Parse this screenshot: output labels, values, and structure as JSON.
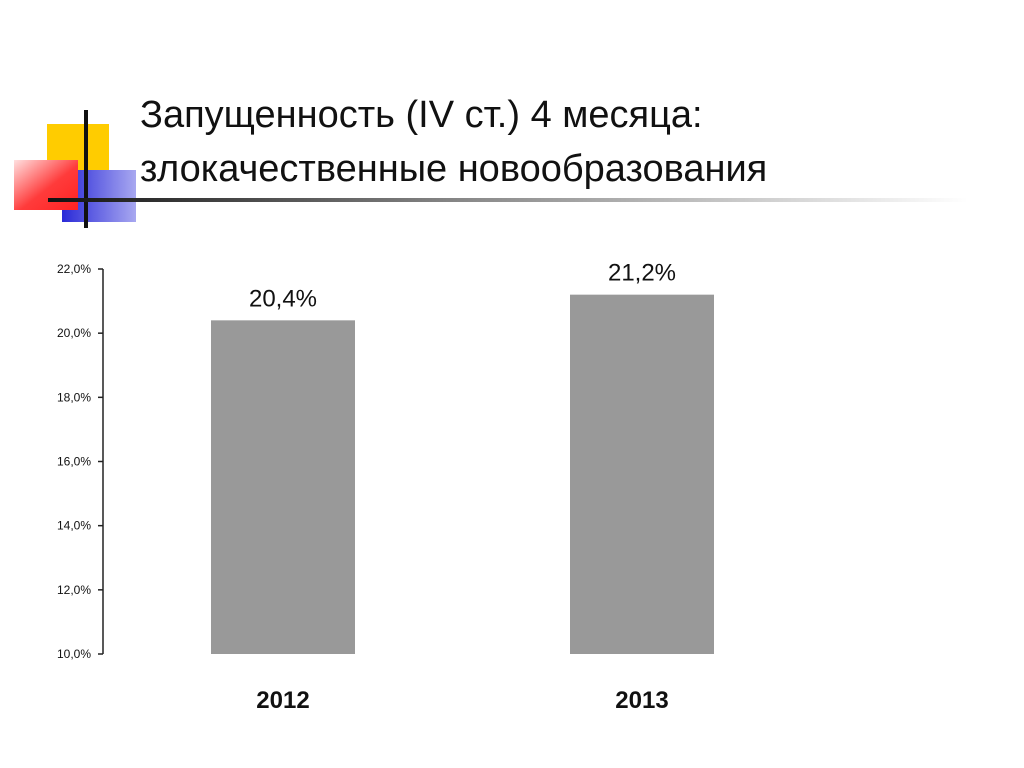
{
  "slide": {
    "title_line1": "Запущенность (IV ст.) 4 месяца:",
    "title_line2": "злокачественные новообразования"
  },
  "colors": {
    "bar": "#999999",
    "axis": "#222222",
    "decor_yellow": "#ffcc00",
    "decor_red": "#ff3333",
    "decor_blue": "#3333dd"
  },
  "chart_data": {
    "type": "bar",
    "categories": [
      "2012",
      "2013"
    ],
    "values": [
      20.4,
      21.2
    ],
    "value_labels": [
      "20,4%",
      "21,2%"
    ],
    "ylim": [
      10,
      22
    ],
    "yticks": [
      10,
      12,
      14,
      16,
      18,
      20,
      22
    ],
    "ytick_labels": [
      "10,0%",
      "12,0%",
      "14,0%",
      "16,0%",
      "18,0%",
      "20,0%",
      "22,0%"
    ],
    "title": "",
    "xlabel": "",
    "ylabel": "",
    "grid": false,
    "legend": "none"
  }
}
